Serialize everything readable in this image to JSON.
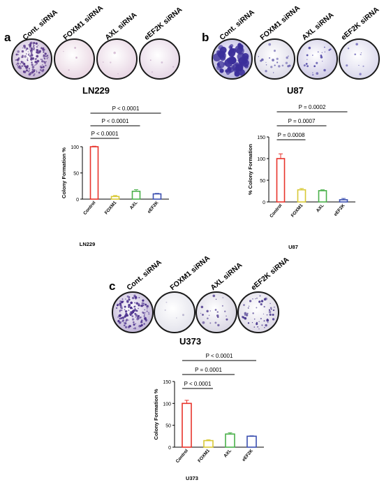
{
  "figure": {
    "panels": [
      {
        "letter": "a",
        "plate_labels": [
          "Cont. siRNA",
          "FOXM1 siRNA",
          "AXL siRNA",
          "eEF2K siRNA"
        ],
        "cell_line": "LN229",
        "plates": [
          {
            "tone": "dense-small-colonies",
            "fill": "#c9b8d6",
            "spot": "#5b3b8c"
          },
          {
            "tone": "clear",
            "fill": "#ead7e3",
            "spot": "#c7a7c4"
          },
          {
            "tone": "clear",
            "fill": "#e8d6e4",
            "spot": "#c9abc8"
          },
          {
            "tone": "clear",
            "fill": "#e6d7e6",
            "spot": "#c8b0cc"
          }
        ]
      },
      {
        "letter": "b",
        "plate_labels": [
          "Cont. siRNA",
          "FOXM1 siRNA",
          "AXL siRNA",
          "eEF2K siRNA"
        ],
        "cell_line": "U87",
        "plates": [
          {
            "tone": "large-colonies",
            "fill": "#b7b3de",
            "spot": "#3b2f9a"
          },
          {
            "tone": "sparse",
            "fill": "#dcdae8",
            "spot": "#6b63b0"
          },
          {
            "tone": "sparse",
            "fill": "#cfcbe6",
            "spot": "#4e45a6"
          },
          {
            "tone": "faint",
            "fill": "#dad8ec",
            "spot": "#7a73bf"
          }
        ]
      },
      {
        "letter": "c",
        "plate_labels": [
          "Cont. siRNA",
          "FOXM1 siRNA",
          "AXL siRNA",
          "eEF2K siRNA"
        ],
        "cell_line": "U373",
        "plates": [
          {
            "tone": "dense",
            "fill": "#c3b7d8",
            "spot": "#4a2f8c"
          },
          {
            "tone": "clear",
            "fill": "#e4e4ec",
            "spot": "#b9b4cf"
          },
          {
            "tone": "sparse",
            "fill": "#d9d6e3",
            "spot": "#5a4796"
          },
          {
            "tone": "speckled",
            "fill": "#ddd9e6",
            "spot": "#4b3a90"
          }
        ]
      }
    ]
  },
  "chart_data": [
    {
      "type": "bar",
      "title": "",
      "xlabel": "LN229",
      "ylabel": "Colony Formation %",
      "categories": [
        "Control",
        "FOXM1",
        "AXL",
        "eEF2K"
      ],
      "values": [
        100,
        5,
        15,
        10
      ],
      "errors": [
        1,
        2,
        3,
        1
      ],
      "colors": [
        "#e8332b",
        "#d8c936",
        "#4ab04a",
        "#3b4fb0"
      ],
      "ylim": [
        0,
        150
      ],
      "yticks": [
        0,
        50,
        100
      ],
      "yticklabels": [
        "0",
        "50",
        "100"
      ],
      "comparisons": [
        {
          "label": "P < 0.0001",
          "from": 0,
          "to": 1
        },
        {
          "label": "P < 0.0001",
          "from": 0,
          "to": 2
        },
        {
          "label": "P < 0.0001",
          "from": 0,
          "to": 3
        }
      ]
    },
    {
      "type": "bar",
      "title": "",
      "xlabel": "U87",
      "ylabel": "% Colony Formation",
      "categories": [
        "Control",
        "FOXM1",
        "AXL",
        "eEF2K"
      ],
      "values": [
        100,
        28,
        26,
        5
      ],
      "errors": [
        11,
        3,
        2,
        3
      ],
      "colors": [
        "#e8332b",
        "#d8c936",
        "#4ab04a",
        "#3b4fb0"
      ],
      "ylim": [
        0,
        150
      ],
      "yticks": [
        0,
        50,
        100,
        150
      ],
      "yticklabels": [
        "0",
        "50",
        "100",
        "150"
      ],
      "comparisons": [
        {
          "label": "P = 0.0008",
          "from": 0,
          "to": 1
        },
        {
          "label": "P = 0.0007",
          "from": 0,
          "to": 2
        },
        {
          "label": "P = 0.0002",
          "from": 0,
          "to": 3
        }
      ]
    },
    {
      "type": "bar",
      "title": "",
      "xlabel": "U373",
      "ylabel": "Colony Formation %",
      "categories": [
        "Control",
        "FOXM1",
        "AXL",
        "eEF2K"
      ],
      "values": [
        100,
        15,
        30,
        25
      ],
      "errors": [
        7,
        2,
        3,
        1
      ],
      "colors": [
        "#e8332b",
        "#d8c936",
        "#4ab04a",
        "#3b4fb0"
      ],
      "ylim": [
        0,
        150
      ],
      "yticks": [
        0,
        50,
        100,
        150
      ],
      "yticklabels": [
        "0",
        "50",
        "100",
        "150"
      ],
      "comparisons": [
        {
          "label": "P < 0.0001",
          "from": 0,
          "to": 1
        },
        {
          "label": "P = 0.0001",
          "from": 0,
          "to": 2
        },
        {
          "label": "P < 0.0001",
          "from": 0,
          "to": 3
        }
      ]
    }
  ]
}
